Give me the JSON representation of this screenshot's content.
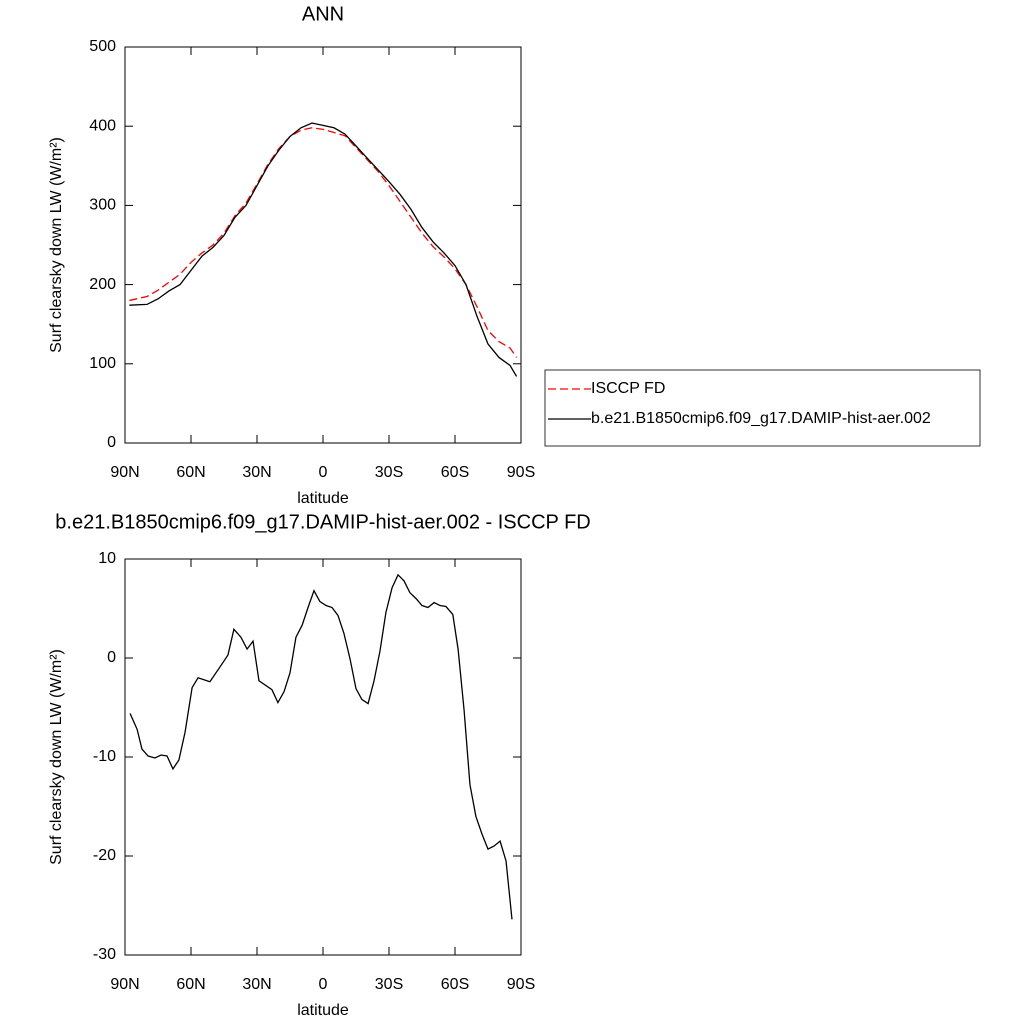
{
  "chart_data": [
    {
      "type": "line",
      "title": "ANN",
      "x_label": "latitude",
      "y_label": "Surf clearsky down LW (W/m²)",
      "x": [
        88,
        80,
        75,
        70,
        65,
        60,
        55,
        50,
        45,
        40,
        35,
        30,
        25,
        20,
        15,
        10,
        5,
        0,
        -5,
        -10,
        -15,
        -20,
        -25,
        -30,
        -35,
        -40,
        -45,
        -50,
        -55,
        -60,
        -65,
        -70,
        -75,
        -80,
        -85,
        -88
      ],
      "series": [
        {
          "name": "ISCCP FD",
          "color": "#ff0000",
          "dashed": true,
          "values": [
            180,
            185,
            193,
            203,
            213,
            228,
            240,
            250,
            265,
            287,
            303,
            327,
            352,
            372,
            387,
            395,
            398,
            396,
            392,
            388,
            373,
            358,
            343,
            325,
            305,
            285,
            265,
            248,
            235,
            220,
            200,
            172,
            142,
            128,
            120,
            108
          ]
        },
        {
          "name": "b.e21.B1850cmip6.f09_g17.DAMIP-hist-aer.002",
          "color": "#000000",
          "dashed": false,
          "values": [
            174,
            175,
            182,
            192,
            200,
            218,
            236,
            247,
            262,
            285,
            300,
            325,
            350,
            370,
            387,
            398,
            404,
            401,
            398,
            390,
            375,
            360,
            345,
            330,
            314,
            295,
            272,
            254,
            240,
            224,
            200,
            160,
            125,
            108,
            98,
            84
          ]
        }
      ],
      "xlim": [
        90,
        -90
      ],
      "xticks": [
        {
          "value": 90,
          "label": "90N"
        },
        {
          "value": 60,
          "label": "60N"
        },
        {
          "value": 30,
          "label": "30N"
        },
        0,
        {
          "value": -30,
          "label": "30S"
        },
        {
          "value": -60,
          "label": "60S"
        },
        {
          "value": -90,
          "label": "90S"
        }
      ],
      "ylim": [
        0,
        500
      ],
      "yticks": [
        0,
        100,
        200,
        300,
        400,
        500
      ],
      "legend": "right"
    },
    {
      "type": "line",
      "title": "b.e21.B1850cmip6.f09_g17.DAMIP-hist-aer.002 - ISCCP FD",
      "x_label": "latitude",
      "y_label": "Surf clearsky down LW (W/m²)",
      "x": [
        87.7,
        84.5,
        82.3,
        79.5,
        76.4,
        73.6,
        70.9,
        68.2,
        65.5,
        62.7,
        59.5,
        56.8,
        51.4,
        45.9,
        43.2,
        40.5,
        37.3,
        34.5,
        31.8,
        29.1,
        23.2,
        20.5,
        17.7,
        15,
        12.3,
        9.5,
        6.8,
        4.1,
        1.4,
        -1.4,
        -4.1,
        -6.8,
        -9.5,
        -12.3,
        -15,
        -17.7,
        -20.5,
        -23.2,
        -25.9,
        -28.6,
        -31.4,
        -34.1,
        -36.8,
        -39.5,
        -42.3,
        -45,
        -47.7,
        -50.5,
        -53.2,
        -55.9,
        -59,
        -61.4,
        -64.1,
        -66.8,
        -69.5,
        -72.3,
        -75,
        -77.7,
        -80.5,
        -83.2,
        -85.9
      ],
      "series": [
        {
          "color": "#000000",
          "dashed": false,
          "values": [
            -5.6,
            -7.2,
            -9.2,
            -9.9,
            -10.1,
            -9.8,
            -9.9,
            -11.2,
            -10.3,
            -7.5,
            -3.0,
            -2.0,
            -2.4,
            -0.6,
            0.3,
            2.9,
            2.1,
            0.9,
            1.7,
            -2.3,
            -3.2,
            -4.5,
            -3.4,
            -1.5,
            2.1,
            3.3,
            5.1,
            6.8,
            5.7,
            5.3,
            5.1,
            4.3,
            2.5,
            -0.1,
            -3.1,
            -4.2,
            -4.6,
            -2.3,
            0.7,
            4.6,
            7.1,
            8.4,
            7.8,
            6.6,
            6.0,
            5.3,
            5.1,
            5.6,
            5.3,
            5.2,
            4.4,
            0.9,
            -5.2,
            -12.8,
            -16.0,
            -17.8,
            -19.3,
            -19.0,
            -18.5,
            -20.5,
            -26.4
          ]
        }
      ],
      "xlim": [
        90,
        -90
      ],
      "xticks": [
        {
          "value": 90,
          "label": "90N"
        },
        {
          "value": 60,
          "label": "60N"
        },
        {
          "value": 30,
          "label": "30N"
        },
        0,
        {
          "value": -30,
          "label": "30S"
        },
        {
          "value": -60,
          "label": "60S"
        },
        {
          "value": -90,
          "label": "90S"
        }
      ],
      "ylim": [
        -30,
        10
      ],
      "yticks": [
        -30,
        -20,
        -10,
        0,
        10
      ]
    }
  ]
}
